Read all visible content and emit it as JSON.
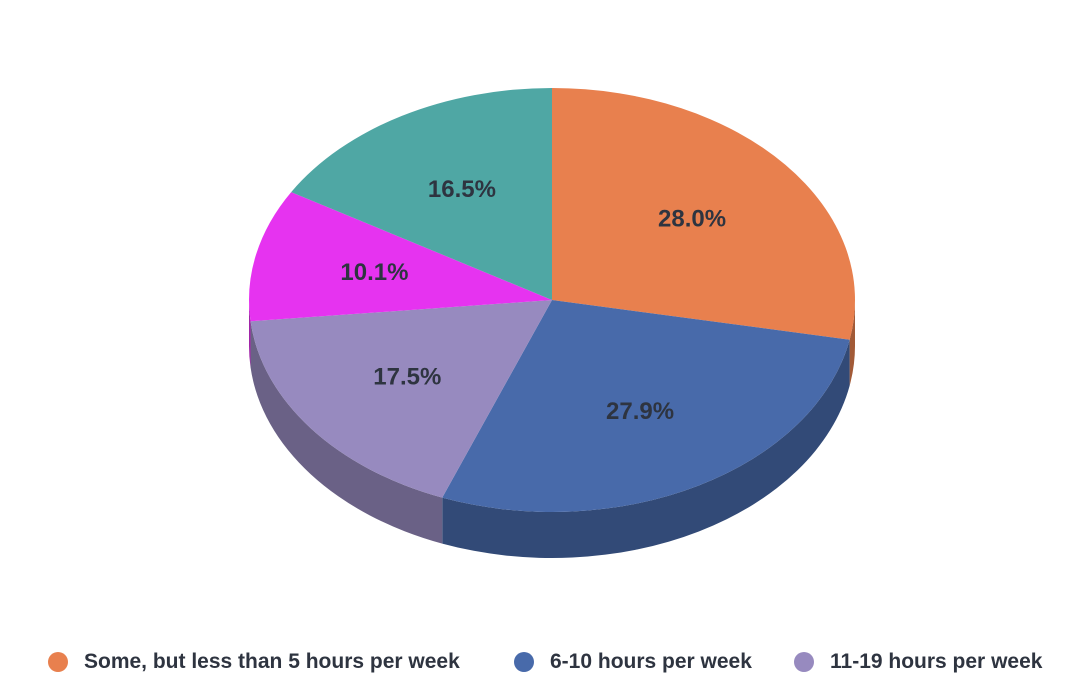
{
  "chart_data": {
    "type": "pie",
    "style": "3d",
    "slices": [
      {
        "label": "Some, but less than 5 hours per week",
        "value": 28.0,
        "display": "28.0%",
        "color": "#E8804E"
      },
      {
        "label": "6-10 hours per week",
        "value": 27.9,
        "display": "27.9%",
        "color": "#486AAA"
      },
      {
        "label": "11-19 hours per week",
        "value": 17.5,
        "display": "17.5%",
        "color": "#978ABF"
      },
      {
        "label": "",
        "value": 10.1,
        "display": "10.1%",
        "color": "#E633F0"
      },
      {
        "label": "",
        "value": 16.5,
        "display": "16.5%",
        "color": "#4FA7A4"
      }
    ],
    "legend_placement": "bottom"
  },
  "legend": {
    "items": [
      {
        "label": "Some, but less than 5 hours per week",
        "color": "#E8804E"
      },
      {
        "label": "6-10 hours per week",
        "color": "#486AAA"
      },
      {
        "label": "11-19 hours per week",
        "color": "#978ABF"
      }
    ]
  }
}
